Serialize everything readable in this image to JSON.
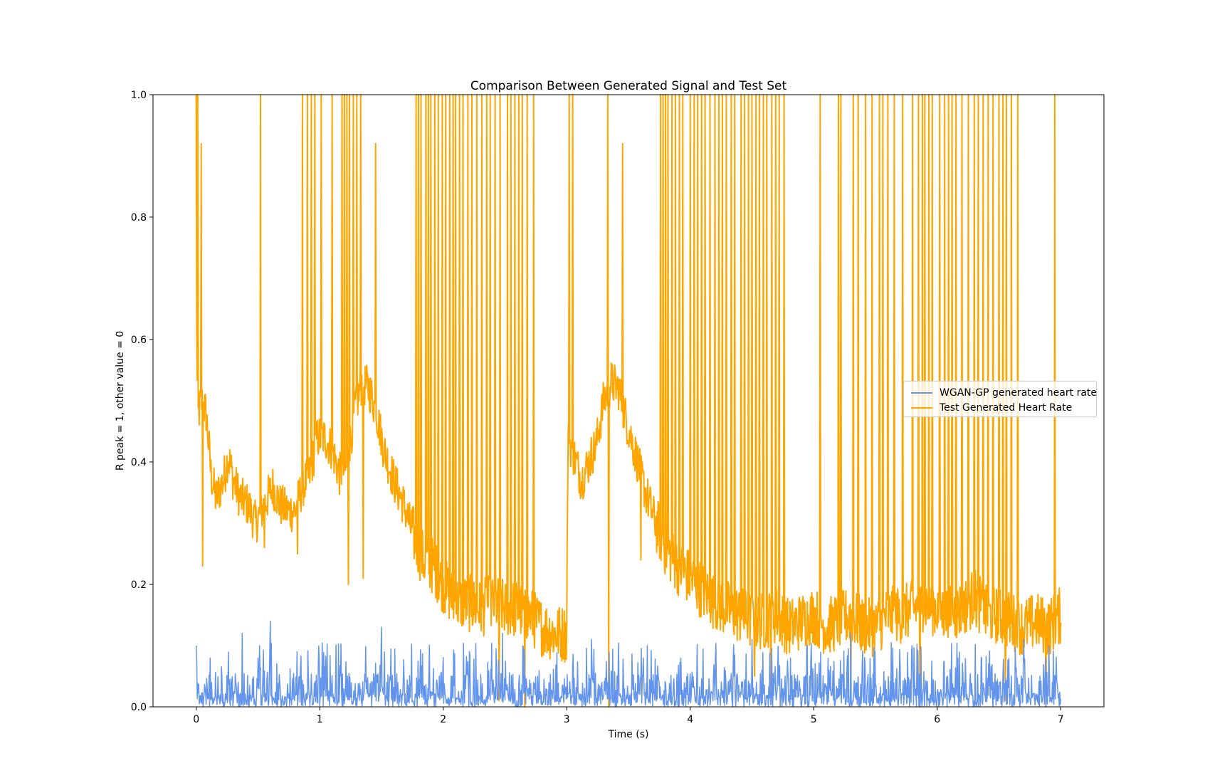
{
  "chart_data": {
    "type": "line",
    "title": "Comparison Between Generated Signal and Test Set",
    "xlabel": "Time (s)",
    "ylabel": "R peak = 1, other value = 0",
    "xlim": [
      -0.35,
      7.35
    ],
    "ylim": [
      0.0,
      1.0
    ],
    "x_ticks": [
      0,
      1,
      2,
      3,
      4,
      5,
      6,
      7
    ],
    "x_tick_labels": [
      "0",
      "1",
      "2",
      "3",
      "4",
      "5",
      "6",
      "7"
    ],
    "y_ticks": [
      0.0,
      0.2,
      0.4,
      0.6,
      0.8,
      1.0
    ],
    "y_tick_labels": [
      "0.0",
      "0.2",
      "0.4",
      "0.6",
      "0.8",
      "1.0"
    ],
    "grid": false,
    "legend_position": "center-right",
    "series": [
      {
        "name": "WGAN-GP generated heart rate",
        "color": "#6495ED",
        "description_values": {
          "x_range": [
            0,
            7
          ],
          "baseline": 0.0,
          "typical_peak": 0.05,
          "max_peak": 0.14,
          "notable_peaks": [
            {
              "x": 0.0,
              "y": 0.1
            },
            {
              "x": 0.37,
              "y": 0.12
            },
            {
              "x": 0.6,
              "y": 0.14
            },
            {
              "x": 1.5,
              "y": 0.13
            },
            {
              "x": 2.48,
              "y": 0.12
            },
            {
              "x": 3.2,
              "y": 0.11
            },
            {
              "x": 4.5,
              "y": 0.11
            },
            {
              "x": 5.3,
              "y": 0.12
            },
            {
              "x": 6.7,
              "y": 0.11
            }
          ]
        }
      },
      {
        "name": "Test Generated Heart Rate",
        "color": "#FFA500",
        "baseline_points": [
          [
            0.0,
            0.74
          ],
          [
            0.01,
            0.47
          ],
          [
            0.04,
            0.5
          ],
          [
            0.08,
            0.48
          ],
          [
            0.12,
            0.38
          ],
          [
            0.16,
            0.34
          ],
          [
            0.22,
            0.37
          ],
          [
            0.26,
            0.41
          ],
          [
            0.3,
            0.37
          ],
          [
            0.36,
            0.34
          ],
          [
            0.42,
            0.33
          ],
          [
            0.48,
            0.3
          ],
          [
            0.55,
            0.33
          ],
          [
            0.62,
            0.36
          ],
          [
            0.68,
            0.33
          ],
          [
            0.74,
            0.32
          ],
          [
            0.8,
            0.32
          ],
          [
            0.86,
            0.36
          ],
          [
            0.92,
            0.38
          ],
          [
            0.98,
            0.44
          ],
          [
            1.04,
            0.44
          ],
          [
            1.1,
            0.42
          ],
          [
            1.16,
            0.38
          ],
          [
            1.22,
            0.39
          ],
          [
            1.28,
            0.48
          ],
          [
            1.34,
            0.53
          ],
          [
            1.4,
            0.52
          ],
          [
            1.46,
            0.48
          ],
          [
            1.52,
            0.42
          ],
          [
            1.6,
            0.37
          ],
          [
            1.68,
            0.33
          ],
          [
            1.76,
            0.28
          ],
          [
            1.84,
            0.24
          ],
          [
            1.92,
            0.23
          ],
          [
            2.0,
            0.2
          ],
          [
            2.1,
            0.17
          ],
          [
            2.2,
            0.17
          ],
          [
            2.3,
            0.16
          ],
          [
            2.4,
            0.17
          ],
          [
            2.5,
            0.16
          ],
          [
            2.6,
            0.16
          ],
          [
            2.7,
            0.15
          ],
          [
            2.8,
            0.13
          ],
          [
            2.9,
            0.12
          ],
          [
            3.0,
            0.12
          ],
          [
            3.01,
            0.44
          ],
          [
            3.06,
            0.41
          ],
          [
            3.12,
            0.37
          ],
          [
            3.18,
            0.4
          ],
          [
            3.24,
            0.43
          ],
          [
            3.3,
            0.5
          ],
          [
            3.36,
            0.53
          ],
          [
            3.42,
            0.52
          ],
          [
            3.48,
            0.47
          ],
          [
            3.56,
            0.41
          ],
          [
            3.64,
            0.35
          ],
          [
            3.72,
            0.3
          ],
          [
            3.8,
            0.26
          ],
          [
            3.9,
            0.23
          ],
          [
            4.0,
            0.21
          ],
          [
            4.1,
            0.19
          ],
          [
            4.2,
            0.17
          ],
          [
            4.3,
            0.16
          ],
          [
            4.4,
            0.15
          ],
          [
            4.5,
            0.14
          ],
          [
            4.6,
            0.14
          ],
          [
            4.7,
            0.15
          ],
          [
            4.8,
            0.13
          ],
          [
            4.9,
            0.14
          ],
          [
            5.0,
            0.15
          ],
          [
            5.1,
            0.13
          ],
          [
            5.2,
            0.14
          ],
          [
            5.3,
            0.15
          ],
          [
            5.4,
            0.13
          ],
          [
            5.5,
            0.13
          ],
          [
            5.6,
            0.15
          ],
          [
            5.7,
            0.15
          ],
          [
            5.8,
            0.16
          ],
          [
            5.9,
            0.17
          ],
          [
            6.0,
            0.16
          ],
          [
            6.1,
            0.15
          ],
          [
            6.2,
            0.16
          ],
          [
            6.3,
            0.18
          ],
          [
            6.4,
            0.15
          ],
          [
            6.5,
            0.15
          ],
          [
            6.6,
            0.14
          ],
          [
            6.7,
            0.13
          ],
          [
            6.8,
            0.14
          ],
          [
            6.9,
            0.13
          ],
          [
            7.0,
            0.15
          ]
        ],
        "spike_times": [
          0.0,
          0.01,
          0.52,
          0.86,
          0.9,
          0.93,
          0.96,
          1.01,
          1.1,
          1.18,
          1.2,
          1.22,
          1.24,
          1.27,
          1.3,
          1.33,
          1.78,
          1.8,
          1.82,
          1.86,
          1.88,
          1.9,
          1.93,
          1.96,
          1.99,
          2.02,
          2.05,
          2.08,
          2.1,
          2.13,
          2.16,
          2.2,
          2.23,
          2.27,
          2.31,
          2.35,
          2.38,
          2.42,
          2.46,
          2.52,
          2.55,
          2.58,
          2.61,
          2.64,
          2.68,
          2.73,
          3.02,
          3.05,
          3.33,
          3.76,
          3.78,
          3.8,
          3.82,
          3.85,
          3.88,
          3.91,
          3.94,
          4.0,
          4.03,
          4.06,
          4.09,
          4.12,
          4.16,
          4.2,
          4.23,
          4.26,
          4.29,
          4.33,
          4.36,
          4.41,
          4.44,
          4.47,
          4.5,
          4.53,
          4.56,
          4.59,
          4.62,
          4.66,
          4.69,
          4.72,
          4.76,
          5.05,
          5.2,
          5.22,
          5.32,
          5.36,
          5.42,
          5.47,
          5.53,
          5.56,
          5.6,
          5.65,
          5.72,
          5.8,
          5.85,
          5.88,
          5.9,
          5.93,
          5.96,
          6.02,
          6.06,
          6.09,
          6.12,
          6.15,
          6.2,
          6.25,
          6.3,
          6.33,
          6.37,
          6.41,
          6.45,
          6.5,
          6.53,
          6.56,
          6.6,
          6.65,
          6.95
        ],
        "partial_spikes": [
          {
            "x": 0.04,
            "y": 0.92
          },
          {
            "x": 1.45,
            "y": 0.92
          },
          {
            "x": 3.45,
            "y": 0.92
          }
        ],
        "dips": [
          {
            "x": 0.05,
            "y": 0.23
          },
          {
            "x": 0.55,
            "y": 0.26
          },
          {
            "x": 0.82,
            "y": 0.25
          },
          {
            "x": 1.23,
            "y": 0.2
          },
          {
            "x": 1.35,
            "y": 0.21
          },
          {
            "x": 1.45,
            "y": 0.25
          },
          {
            "x": 2.45,
            "y": 0.01
          },
          {
            "x": 2.66,
            "y": 0.0
          },
          {
            "x": 3.34,
            "y": 0.0
          },
          {
            "x": 3.6,
            "y": 0.24
          },
          {
            "x": 4.52,
            "y": 0.05
          },
          {
            "x": 4.65,
            "y": 0.01
          },
          {
            "x": 5.3,
            "y": 0.01
          },
          {
            "x": 5.47,
            "y": 0.0
          },
          {
            "x": 5.86,
            "y": 0.0
          },
          {
            "x": 6.37,
            "y": 0.04
          },
          {
            "x": 6.55,
            "y": 0.01
          },
          {
            "x": 6.88,
            "y": 0.0
          }
        ]
      }
    ]
  }
}
